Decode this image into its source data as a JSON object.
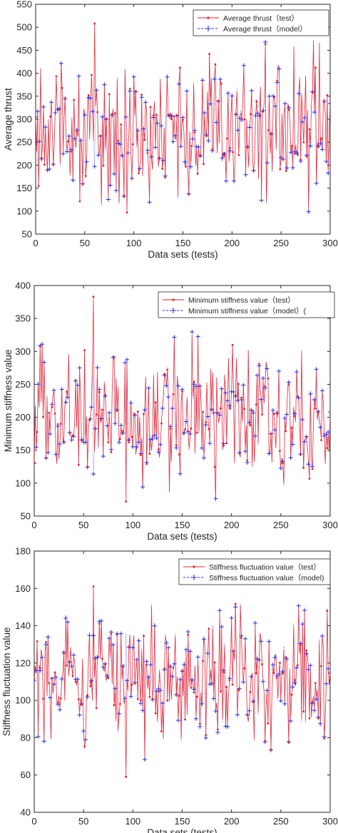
{
  "chart_data": [
    {
      "type": "line",
      "xlabel": "Data sets (tests)",
      "ylabel": "Average thrust",
      "xlim": [
        0,
        300
      ],
      "ylim": [
        50,
        550
      ],
      "xticks": [
        "0",
        "50",
        "100",
        "150",
        "200",
        "250",
        "300"
      ],
      "yticks": [
        "50",
        "100",
        "150",
        "200",
        "250",
        "300",
        "350",
        "400",
        "450",
        "500",
        "550"
      ],
      "legend_position": "top-right",
      "seed": 11,
      "range": [
        97,
        508
      ],
      "mean": 280,
      "spread": 105,
      "series": [
        {
          "name": "Average thrust（test）",
          "color": "#e8202a",
          "marker": "dot"
        },
        {
          "name": "Average thrust（model）",
          "color": "#2a2ae8",
          "marker": "plus"
        }
      ]
    },
    {
      "type": "line",
      "xlabel": "Data sets (tests)",
      "ylabel": "Minimum stiffness value",
      "xlim": [
        0,
        300
      ],
      "ylim": [
        50,
        400
      ],
      "xticks": [
        "0",
        "50",
        "100",
        "150",
        "200",
        "250",
        "300"
      ],
      "yticks": [
        "50",
        "100",
        "150",
        "200",
        "250",
        "300",
        "350",
        "400"
      ],
      "legend_position": "top-right",
      "seed": 23,
      "range": [
        72,
        383
      ],
      "mean": 200,
      "spread": 72,
      "series": [
        {
          "name": "Minimum stiffness value（test）",
          "color": "#e8202a",
          "marker": "dot"
        },
        {
          "name": "Minimum stiffness value（model）(",
          "color": "#2a2ae8",
          "marker": "plus"
        }
      ]
    },
    {
      "type": "line",
      "xlabel": "Data sets (tests)",
      "ylabel": "Stiffness fluctuation value",
      "xlim": [
        0,
        300
      ],
      "ylim": [
        40,
        180
      ],
      "xticks": [
        "0",
        "50",
        "100",
        "150",
        "200",
        "250",
        "300"
      ],
      "yticks": [
        "40",
        "60",
        "80",
        "100",
        "120",
        "140",
        "160",
        "180"
      ],
      "legend_position": "top-right",
      "seed": 37,
      "range": [
        59,
        161
      ],
      "mean": 110,
      "spread": 28,
      "series": [
        {
          "name": "Stiffness fluctuation value（test）",
          "color": "#e8202a",
          "marker": "dot"
        },
        {
          "name": "Stiffness fluctuation value（model)",
          "color": "#2a2ae8",
          "marker": "plus"
        }
      ]
    }
  ]
}
